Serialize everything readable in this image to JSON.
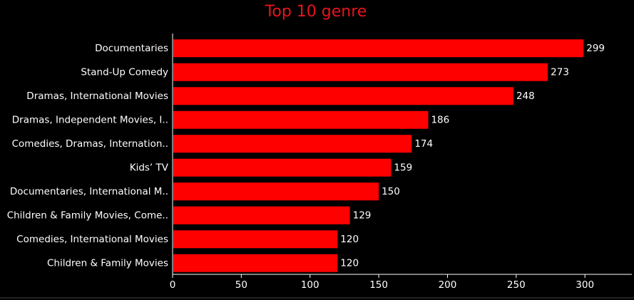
{
  "chart_data": {
    "type": "bar",
    "orientation": "horizontal",
    "title": "Top 10 genre",
    "categories": [
      "Documentaries",
      "Stand-Up Comedy",
      "Dramas, International Movies",
      "Dramas, Independent Movies, I..",
      "Comedies, Dramas, Internation..",
      "Kids’ TV",
      "Documentaries, International M..",
      "Children & Family Movies, Come..",
      "Comedies, International Movies",
      "Children & Family Movies"
    ],
    "values": [
      299,
      273,
      248,
      186,
      174,
      159,
      150,
      129,
      120,
      120
    ],
    "xlabel": "",
    "ylabel": "",
    "xlim": [
      0,
      330
    ],
    "xticks": [
      0,
      50,
      100,
      150,
      200,
      250,
      300
    ],
    "grid": false,
    "legend": "none",
    "colors": {
      "bar": "#ff0000",
      "title": "#e8141b",
      "text": "#ffffff",
      "background": "#000000",
      "axis": "#ffffff"
    }
  }
}
